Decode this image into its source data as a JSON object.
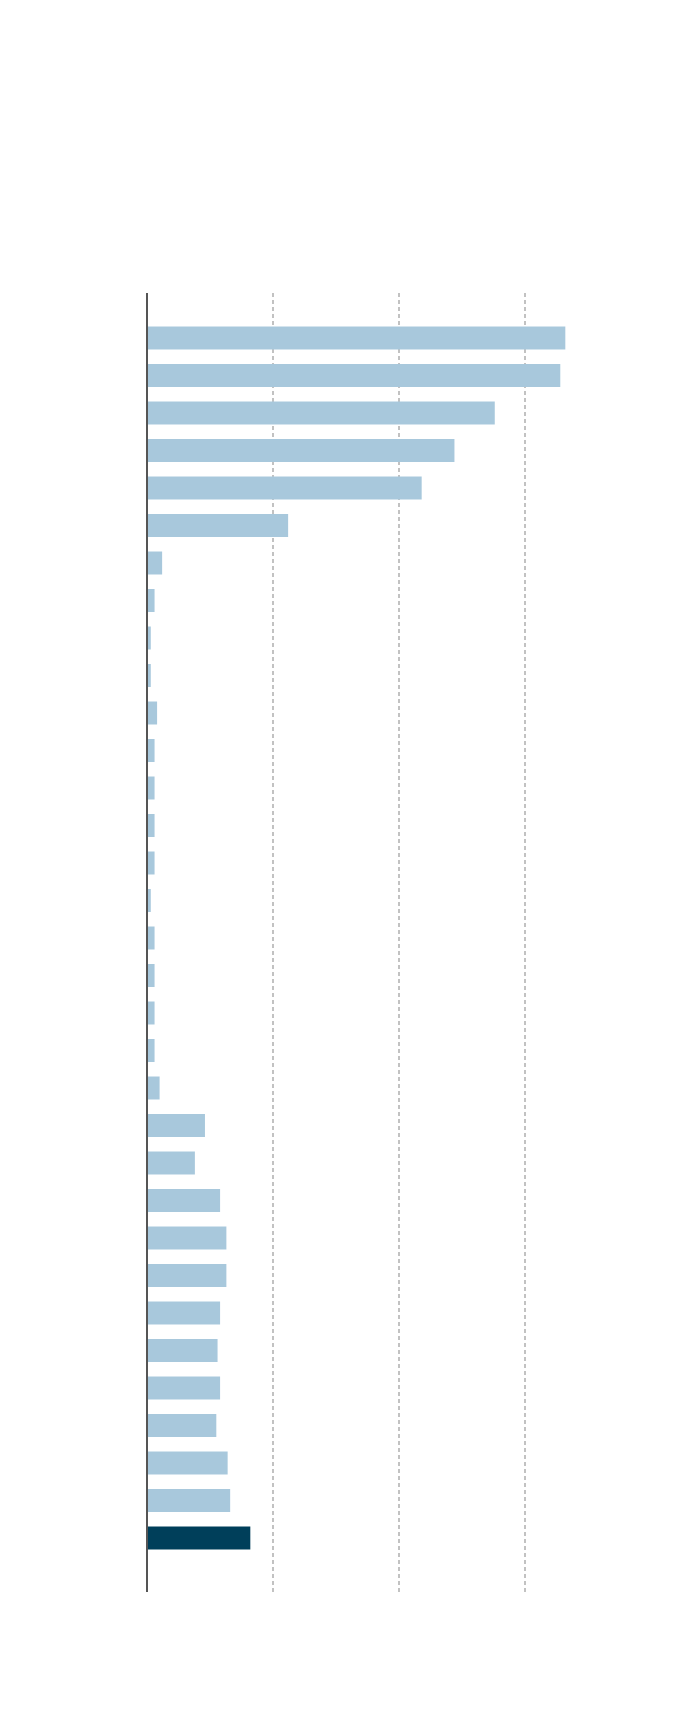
{
  "chart_data": {
    "type": "hbar",
    "values": [
      332,
      328,
      276,
      244,
      218,
      112,
      12,
      6,
      3,
      3,
      8,
      6,
      6,
      6,
      6,
      3,
      6,
      6,
      6,
      6,
      10,
      46,
      38,
      58,
      63,
      63,
      58,
      56,
      58,
      55,
      64,
      66,
      82
    ],
    "colors": [
      "#a8c8dc",
      "#a8c8dc",
      "#a8c8dc",
      "#a8c8dc",
      "#a8c8dc",
      "#a8c8dc",
      "#a8c8dc",
      "#a8c8dc",
      "#a8c8dc",
      "#a8c8dc",
      "#a8c8dc",
      "#a8c8dc",
      "#a8c8dc",
      "#a8c8dc",
      "#a8c8dc",
      "#a8c8dc",
      "#a8c8dc",
      "#a8c8dc",
      "#a8c8dc",
      "#a8c8dc",
      "#a8c8dc",
      "#a8c8dc",
      "#a8c8dc",
      "#a8c8dc",
      "#a8c8dc",
      "#a8c8dc",
      "#a8c8dc",
      "#a8c8dc",
      "#a8c8dc",
      "#a8c8dc",
      "#a8c8dc",
      "#a8c8dc",
      "#003f5a"
    ],
    "xlim": [
      0,
      350
    ],
    "xticks": [
      0,
      100,
      200,
      300
    ],
    "grid": true
  }
}
